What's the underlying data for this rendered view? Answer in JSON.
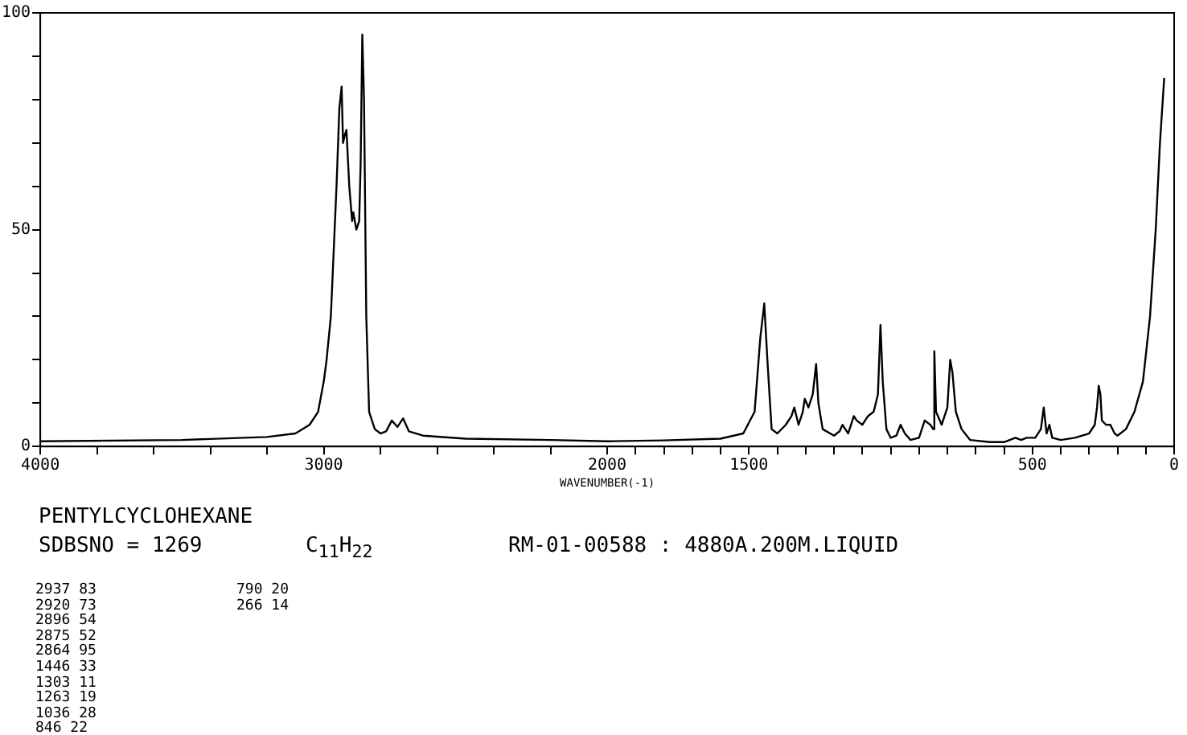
{
  "chart_data": {
    "type": "line",
    "title": "PENTYLCYCLOHEXANE",
    "subtitle": "SDBSNO = 1269",
    "xlabel": "WAVENUMBER(-1)",
    "annotations": [
      "C$_{11}$H$_{22}$",
      "RM-01-00588 : 4880A.200M.LIQUID",
      "2937 83",
      "2920 73",
      "2896 54",
      "2875 52",
      "2864 95",
      "1446 33",
      "1303 11",
      "1263 19",
      "1036 28",
      "846 22",
      "790 20",
      "266 14"
    ],
    "x": [
      4000,
      3500,
      3200,
      3100,
      3050,
      3020,
      3000,
      2990,
      2975,
      2965,
      2955,
      2945,
      2937,
      2932,
      2925,
      2920,
      2910,
      2900,
      2896,
      2885,
      2875,
      2870,
      2864,
      2858,
      2850,
      2840,
      2820,
      2800,
      2780,
      2760,
      2740,
      2720,
      2700,
      2650,
      2500,
      2200,
      2000,
      1800,
      1600,
      1520,
      1480,
      1460,
      1446,
      1435,
      1420,
      1400,
      1370,
      1350,
      1340,
      1325,
      1310,
      1303,
      1290,
      1275,
      1263,
      1255,
      1240,
      1200,
      1180,
      1170,
      1160,
      1150,
      1130,
      1120,
      1100,
      1080,
      1060,
      1045,
      1036,
      1028,
      1015,
      1000,
      980,
      965,
      950,
      930,
      900,
      880,
      860,
      850,
      846,
      840,
      820,
      800,
      790,
      782,
      770,
      750,
      720,
      650,
      600,
      560,
      540,
      520,
      490,
      470,
      460,
      450,
      440,
      430,
      400,
      350,
      300,
      280,
      272,
      266,
      260,
      255,
      240,
      225,
      210,
      200,
      170,
      140,
      110,
      85,
      65,
      50,
      35
    ],
    "series": [
      {
        "color": "#000000",
        "values": [
          1.2,
          1.5,
          2.2,
          3,
          5,
          8,
          15,
          20,
          30,
          45,
          60,
          78,
          83,
          70,
          72,
          73,
          60,
          52,
          54,
          50,
          52,
          65,
          95,
          80,
          30,
          8,
          4,
          3,
          3.5,
          6,
          4.5,
          6.5,
          3.5,
          2.5,
          1.8,
          1.5,
          1.2,
          1.4,
          1.8,
          3,
          8,
          25,
          33,
          20,
          4,
          3,
          5,
          7,
          9,
          5,
          8,
          11,
          9,
          12,
          19,
          10,
          4,
          2.5,
          3.5,
          5,
          4,
          3,
          7,
          6,
          5,
          7,
          8,
          12,
          28,
          15,
          4,
          2,
          2.5,
          5,
          3,
          1.5,
          2,
          6,
          5,
          4,
          22,
          8,
          5,
          9,
          20,
          17,
          8,
          4,
          1.5,
          1,
          1,
          2,
          1.5,
          2,
          2,
          4,
          9,
          3,
          5,
          2,
          1.5,
          2,
          3,
          5,
          9,
          14,
          12,
          6,
          5,
          5,
          3,
          2.5,
          4,
          8,
          15,
          30,
          50,
          70,
          85
        ]
      }
    ],
    "xlim": [
      4000,
      0
    ],
    "xticks": [
      4000,
      {
        "value": 3800,
        "label": null
      },
      {
        "value": 3600,
        "label": null
      },
      {
        "value": 3400,
        "label": null
      },
      {
        "value": 3200,
        "label": null
      },
      3000,
      {
        "value": 2800,
        "label": null
      },
      {
        "value": 2600,
        "label": null
      },
      {
        "value": 2400,
        "label": null
      },
      {
        "value": 2200,
        "label": null
      },
      2000,
      {
        "value": 1900,
        "label": null
      },
      {
        "value": 1800,
        "label": null
      },
      {
        "value": 1700,
        "label": null
      },
      {
        "value": 1600,
        "label": null
      },
      1500,
      {
        "value": 1400,
        "label": null
      },
      {
        "value": 1300,
        "label": null
      },
      {
        "value": 1200,
        "label": null
      },
      {
        "value": 1100,
        "label": null
      },
      {
        "value": 1000,
        "label": null
      },
      {
        "value": 900,
        "label": null
      },
      {
        "value": 800,
        "label": null
      },
      {
        "value": 700,
        "label": null
      },
      {
        "value": 600,
        "label": null
      },
      500,
      {
        "value": 400,
        "label": null
      },
      {
        "value": 300,
        "label": null
      },
      {
        "value": 200,
        "label": null
      },
      {
        "value": 100,
        "label": null
      },
      0
    ],
    "ylim": [
      0,
      100
    ],
    "yticks": [
      0,
      {
        "value": 10,
        "label": null
      },
      {
        "value": 20,
        "label": null
      },
      {
        "value": 30,
        "label": null
      },
      {
        "value": 40,
        "label": null
      },
      50,
      {
        "value": 60,
        "label": null
      },
      {
        "value": 70,
        "label": null
      },
      {
        "value": 80,
        "label": null
      },
      {
        "value": 90,
        "label": null
      },
      100
    ],
    "grid": false,
    "legend": false,
    "marker": "none",
    "line_style": "solid"
  }
}
